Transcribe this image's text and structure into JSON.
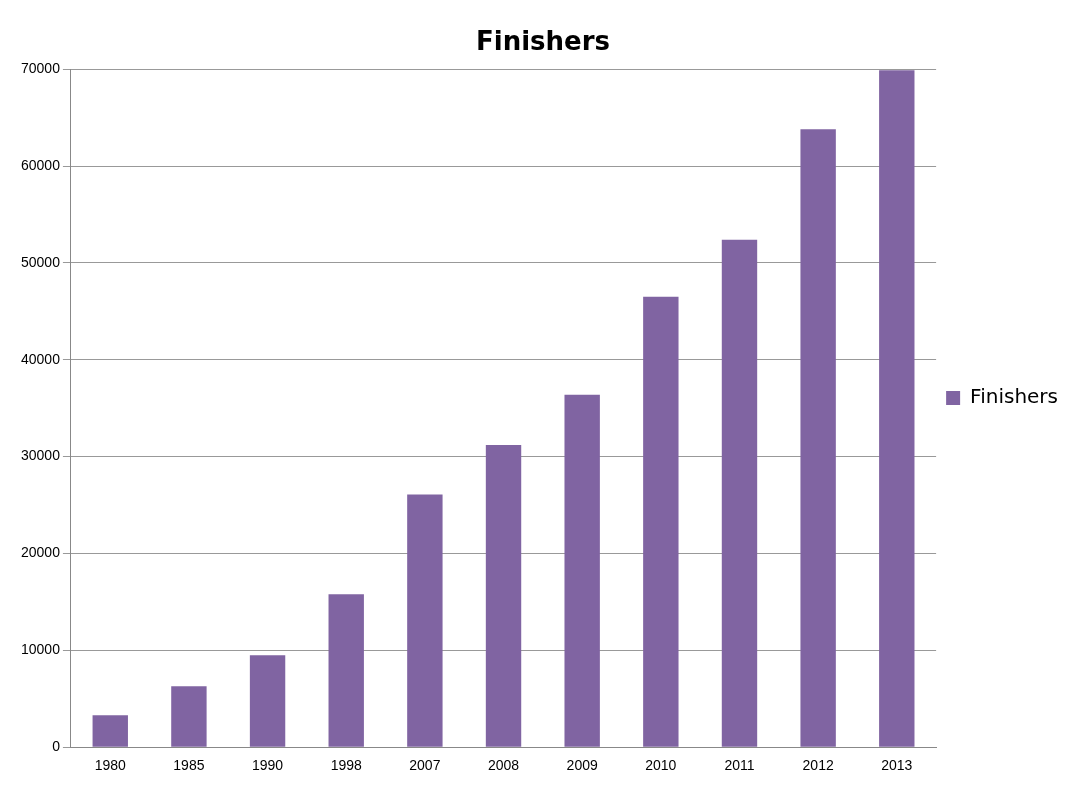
{
  "chart_data": {
    "type": "bar",
    "title": "Finishers",
    "categories": [
      "1980",
      "1985",
      "1990",
      "1998",
      "2007",
      "2008",
      "2009",
      "2010",
      "2011",
      "2012",
      "2013"
    ],
    "series": [
      {
        "name": "Finishers",
        "color": "#8064a2",
        "values": [
          3300,
          6300,
          9500,
          15800,
          26100,
          31200,
          36400,
          46500,
          52400,
          63800,
          69900
        ]
      }
    ],
    "ylim": [
      0,
      70000
    ],
    "yticks": [
      0,
      10000,
      20000,
      30000,
      40000,
      50000,
      60000,
      70000
    ],
    "grid": "y",
    "legend": "right"
  }
}
